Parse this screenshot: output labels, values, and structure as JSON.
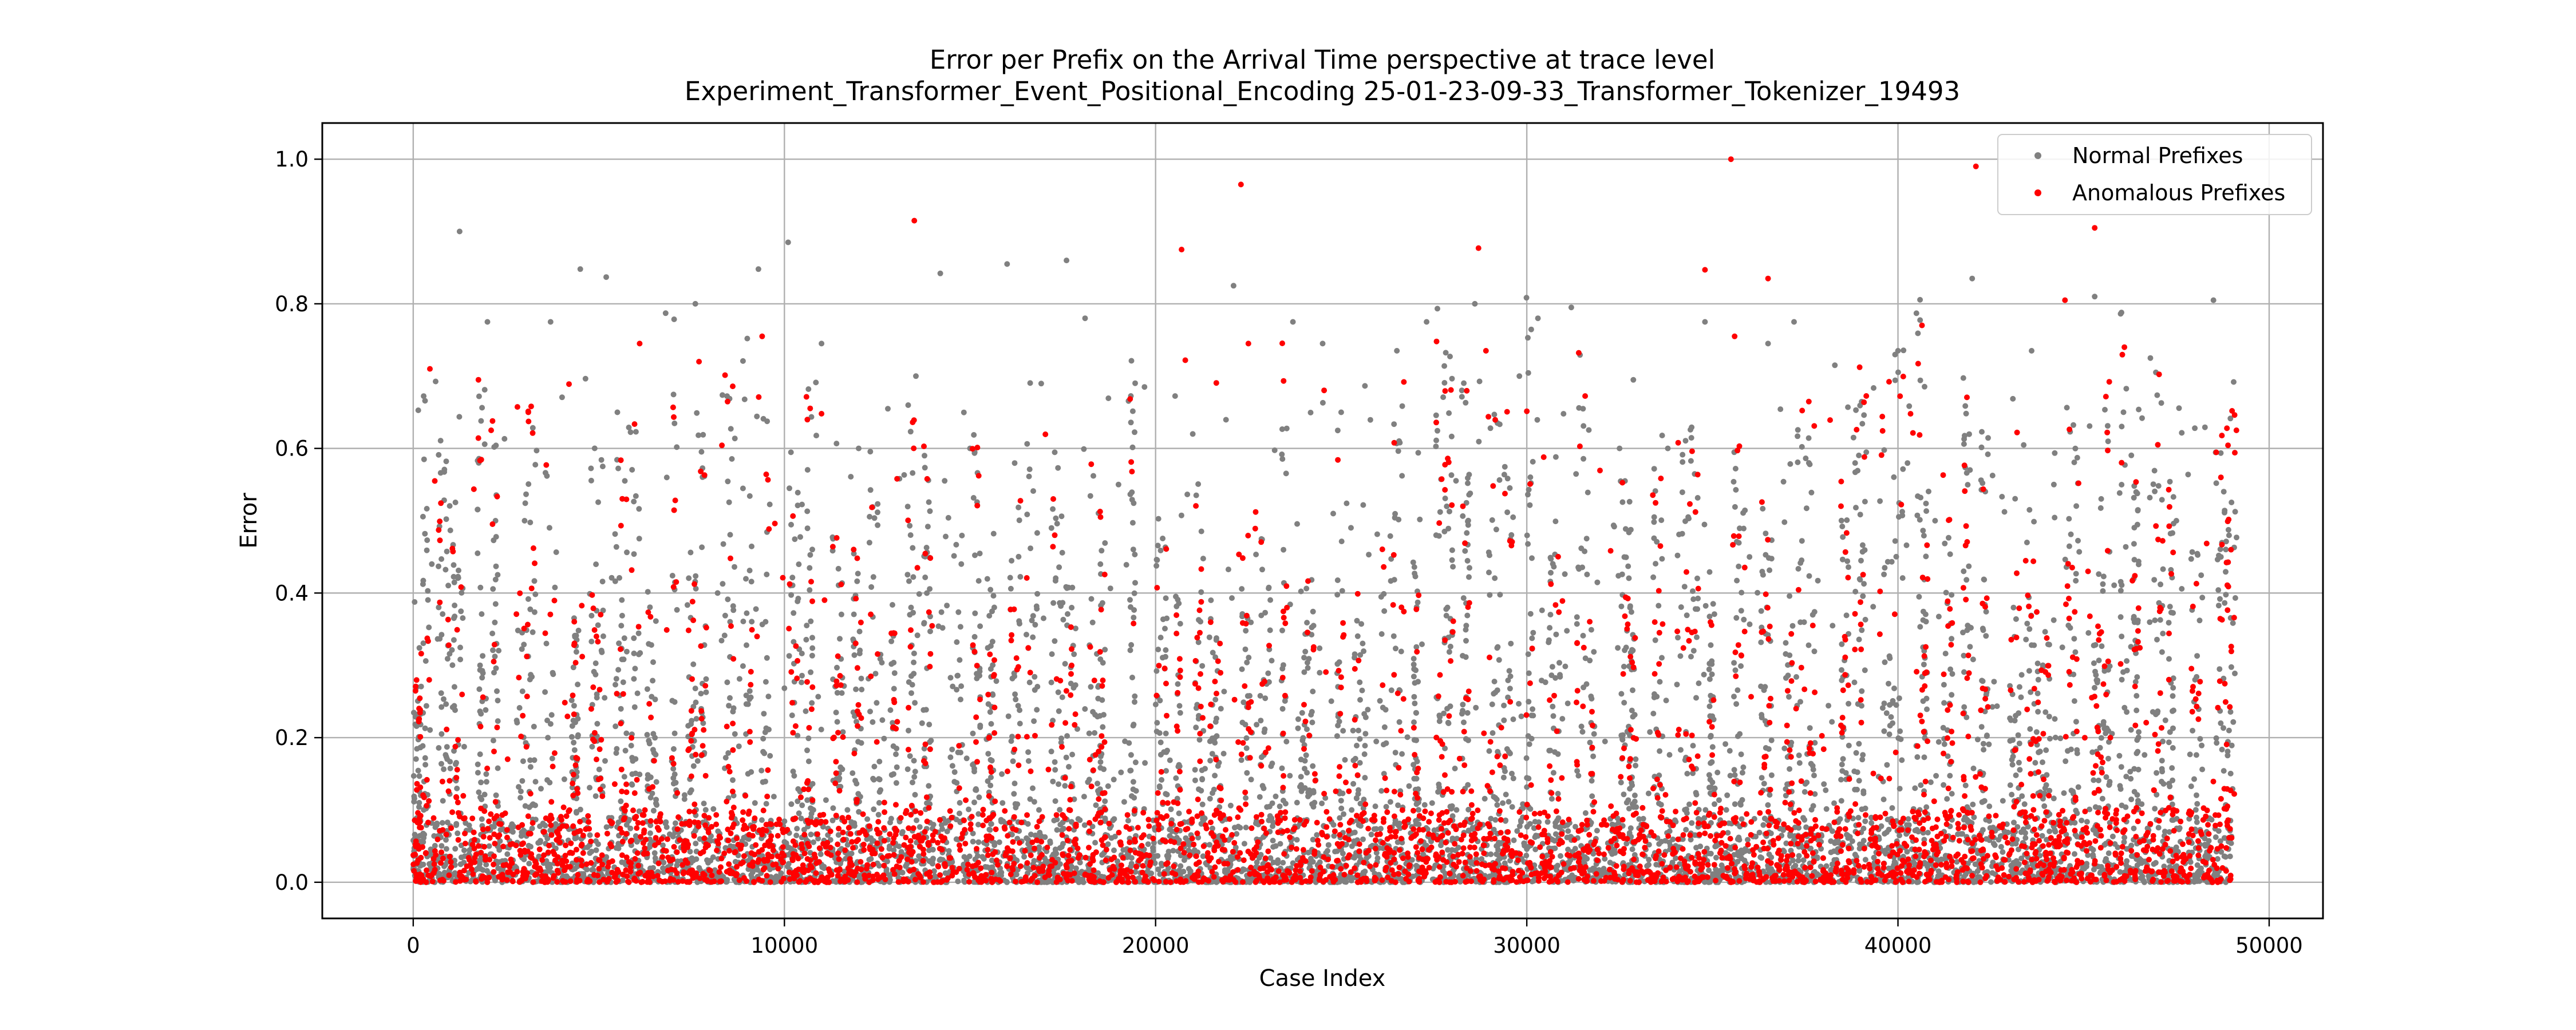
{
  "chart_data": {
    "type": "scatter",
    "title": "Error per Prefix on the Arrival Time perspective at trace level",
    "subtitle": "Experiment_Transformer_Event_Positional_Encoding      25-01-23-09-33_Transformer_Tokenizer_19493",
    "xlabel": "Case Index",
    "ylabel": "Error",
    "xlim": [
      -2450,
      51450
    ],
    "ylim": [
      -0.05,
      1.05
    ],
    "xticks": [
      0,
      10000,
      20000,
      30000,
      40000,
      50000
    ],
    "yticks": [
      0.0,
      0.2,
      0.4,
      0.6,
      0.8,
      1.0
    ],
    "xtick_labels": [
      "0",
      "10000",
      "20000",
      "30000",
      "40000",
      "50000"
    ],
    "ytick_labels": [
      "0.0",
      "0.2",
      "0.4",
      "0.6",
      "0.8",
      "1.0"
    ],
    "grid": true,
    "legend_position": "top-right",
    "n_points_approx": 49000,
    "colors": {
      "normal": "#808080",
      "anomalous": "#ff0000"
    },
    "series": [
      {
        "name": "Normal Prefixes",
        "color": "#808080",
        "points": [
          [
            1250,
            0.9
          ],
          [
            2000,
            0.775
          ],
          [
            3700,
            0.775
          ],
          [
            4500,
            0.848
          ],
          [
            5200,
            0.837
          ],
          [
            6800,
            0.787
          ],
          [
            7600,
            0.8
          ],
          [
            9300,
            0.848
          ],
          [
            10100,
            0.885
          ],
          [
            11000,
            0.745
          ],
          [
            14200,
            0.842
          ],
          [
            16000,
            0.855
          ],
          [
            17600,
            0.86
          ],
          [
            18100,
            0.78
          ],
          [
            19700,
            0.685
          ],
          [
            22100,
            0.825
          ],
          [
            23700,
            0.775
          ],
          [
            24500,
            0.745
          ],
          [
            26500,
            0.735
          ],
          [
            27300,
            0.775
          ],
          [
            28600,
            0.8
          ],
          [
            30300,
            0.78
          ],
          [
            31200,
            0.795
          ],
          [
            33800,
            0.6
          ],
          [
            34800,
            0.775
          ],
          [
            36500,
            0.745
          ],
          [
            37200,
            0.775
          ],
          [
            38300,
            0.715
          ],
          [
            40000,
            0.735
          ],
          [
            42000,
            0.835
          ],
          [
            43600,
            0.735
          ],
          [
            45300,
            0.81
          ],
          [
            46800,
            0.725
          ],
          [
            48500,
            0.805
          ],
          [
            100,
            0.27
          ],
          [
            500,
            0.44
          ],
          [
            1800,
            0.3
          ],
          [
            3000,
            0.5
          ],
          [
            5500,
            0.65
          ],
          [
            8200,
            0.4
          ],
          [
            12000,
            0.6
          ],
          [
            15000,
            0.6
          ],
          [
            19000,
            0.55
          ],
          [
            21000,
            0.62
          ],
          [
            25000,
            0.65
          ],
          [
            29800,
            0.7
          ],
          [
            32500,
            0.6
          ],
          [
            36000,
            0.45
          ],
          [
            41000,
            0.5
          ],
          [
            44200,
            0.55
          ],
          [
            47500,
            0.5
          ],
          [
            48700,
            0.45
          ]
        ]
      },
      {
        "name": "Anomalous Prefixes",
        "color": "#ff0000",
        "points": [
          [
            450,
            0.71
          ],
          [
            2100,
            0.625
          ],
          [
            3100,
            0.65
          ],
          [
            6100,
            0.745
          ],
          [
            7700,
            0.72
          ],
          [
            9400,
            0.755
          ],
          [
            11000,
            0.648
          ],
          [
            13500,
            0.915
          ],
          [
            20700,
            0.875
          ],
          [
            20800,
            0.722
          ],
          [
            22300,
            0.965
          ],
          [
            22500,
            0.745
          ],
          [
            28700,
            0.877
          ],
          [
            28900,
            0.735
          ],
          [
            34800,
            0.847
          ],
          [
            35500,
            1.0
          ],
          [
            35600,
            0.755
          ],
          [
            36500,
            0.835
          ],
          [
            42100,
            0.99
          ],
          [
            44500,
            0.805
          ],
          [
            45300,
            0.905
          ],
          [
            46100,
            0.74
          ],
          [
            47000,
            0.605
          ],
          [
            48700,
            0.56
          ]
        ]
      }
    ]
  }
}
